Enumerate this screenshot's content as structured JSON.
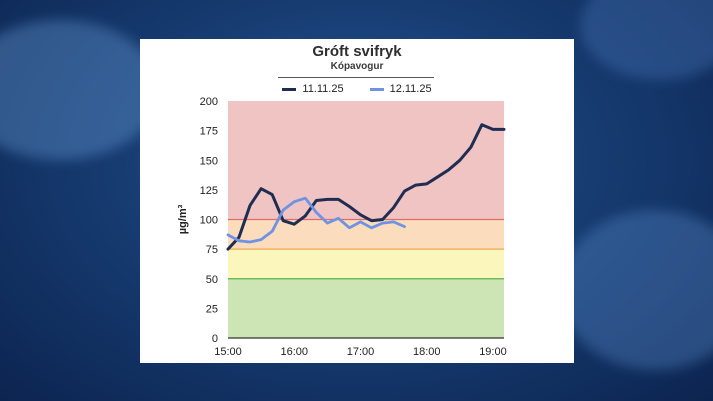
{
  "chart_data": {
    "type": "line",
    "title": "Gróft svifryk",
    "subtitle": "Kópavogur",
    "ylabel": "µg/m³",
    "xlabel": "",
    "ylim": [
      0,
      200
    ],
    "yticks": [
      0,
      25,
      50,
      75,
      100,
      125,
      150,
      175,
      200
    ],
    "xlim": [
      "15:00",
      "19:10"
    ],
    "xticks": [
      "15:00",
      "16:00",
      "17:00",
      "18:00",
      "19:00"
    ],
    "legend_position": "top-center",
    "grid": false,
    "bands": [
      {
        "from": 0,
        "to": 50,
        "color": "#cde5b4",
        "line_color": "#55b147"
      },
      {
        "from": 50,
        "to": 75,
        "color": "#fbf6bc",
        "line_color": "#f0a84e"
      },
      {
        "from": 75,
        "to": 100,
        "color": "#fbdcbc",
        "line_color": "#e06b6b"
      },
      {
        "from": 100,
        "to": 200,
        "color": "#f0c4c3"
      }
    ],
    "series": [
      {
        "name": "11.11.25",
        "color": "#1f2d52",
        "x": [
          "15:00",
          "15:10",
          "15:20",
          "15:30",
          "15:40",
          "15:50",
          "16:00",
          "16:10",
          "16:20",
          "16:30",
          "16:40",
          "16:50",
          "17:00",
          "17:10",
          "17:20",
          "17:30",
          "17:40",
          "17:50",
          "18:00",
          "18:10",
          "18:20",
          "18:30",
          "18:40",
          "18:50",
          "19:00",
          "19:10"
        ],
        "values": [
          75,
          85,
          112,
          126,
          121,
          99,
          96,
          103,
          116,
          117,
          117,
          111,
          104,
          99,
          100,
          110,
          124,
          129,
          130,
          136,
          142,
          150,
          161,
          180,
          176,
          176
        ]
      },
      {
        "name": "12.11.25",
        "color": "#6f93e3",
        "x": [
          "15:00",
          "15:10",
          "15:20",
          "15:30",
          "15:40",
          "15:50",
          "16:00",
          "16:10",
          "16:20",
          "16:30",
          "16:40",
          "16:50",
          "17:00",
          "17:10",
          "17:20",
          "17:30",
          "17:40"
        ],
        "values": [
          87,
          82,
          81,
          83,
          90,
          108,
          115,
          118,
          106,
          97,
          101,
          93,
          98,
          93,
          97,
          98,
          94
        ]
      }
    ]
  }
}
